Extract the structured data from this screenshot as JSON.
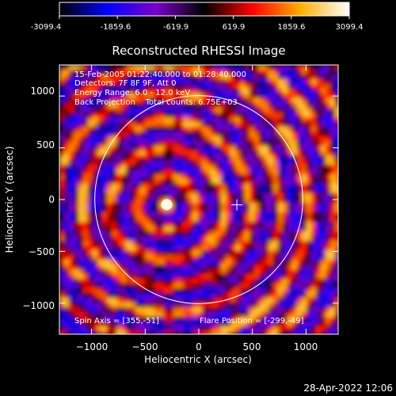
{
  "colorbar": {
    "tick_labels": [
      "-3099.4",
      "-1859.6",
      "-619.9",
      "619.9",
      "1859.6",
      "3099.4"
    ],
    "range": [
      -3099.4,
      3099.4
    ],
    "stops": [
      "#000000",
      "#0000ff",
      "#7a00c8",
      "#000000",
      "#ff0000",
      "#ffb000",
      "#ffffff"
    ]
  },
  "chart_data": {
    "type": "heatmap",
    "title": "Reconstructed RHESSI Image",
    "xlabel": "Heliocentric X (arcsec)",
    "ylabel": "Heliocentric Y (arcsec)",
    "xlim": [
      -1300,
      1300
    ],
    "ylim": [
      -1300,
      1300
    ],
    "x_ticks": [
      -1000,
      -500,
      0,
      500,
      1000
    ],
    "y_ticks": [
      -1000,
      -500,
      0,
      500,
      1000
    ],
    "x_tick_labels": [
      "−1000",
      "−500",
      "0",
      "500",
      "1000"
    ],
    "y_tick_labels": [
      "−1000",
      "−500",
      "0",
      "500",
      "1000"
    ],
    "annotations": [
      "15-Feb-2005 01:22:40.000 to 01:28:40.000",
      "Detectors: 7F 8F 9F, Att 0",
      "Energy Range: 6.0 - 12.0 keV",
      "Back Projection    Total counts: 6.75E+03"
    ],
    "footer_left": "Spin Axis = [355,-51]",
    "footer_right": "Flare Position = [-299,-49]",
    "spin_axis": [
      355,
      -51
    ],
    "flare_position": [
      -299,
      -49
    ],
    "solar_limb_radius_arcsec": 970,
    "solar_limb_center": [
      0,
      0
    ]
  },
  "timestamp": "28-Apr-2022 12:06"
}
